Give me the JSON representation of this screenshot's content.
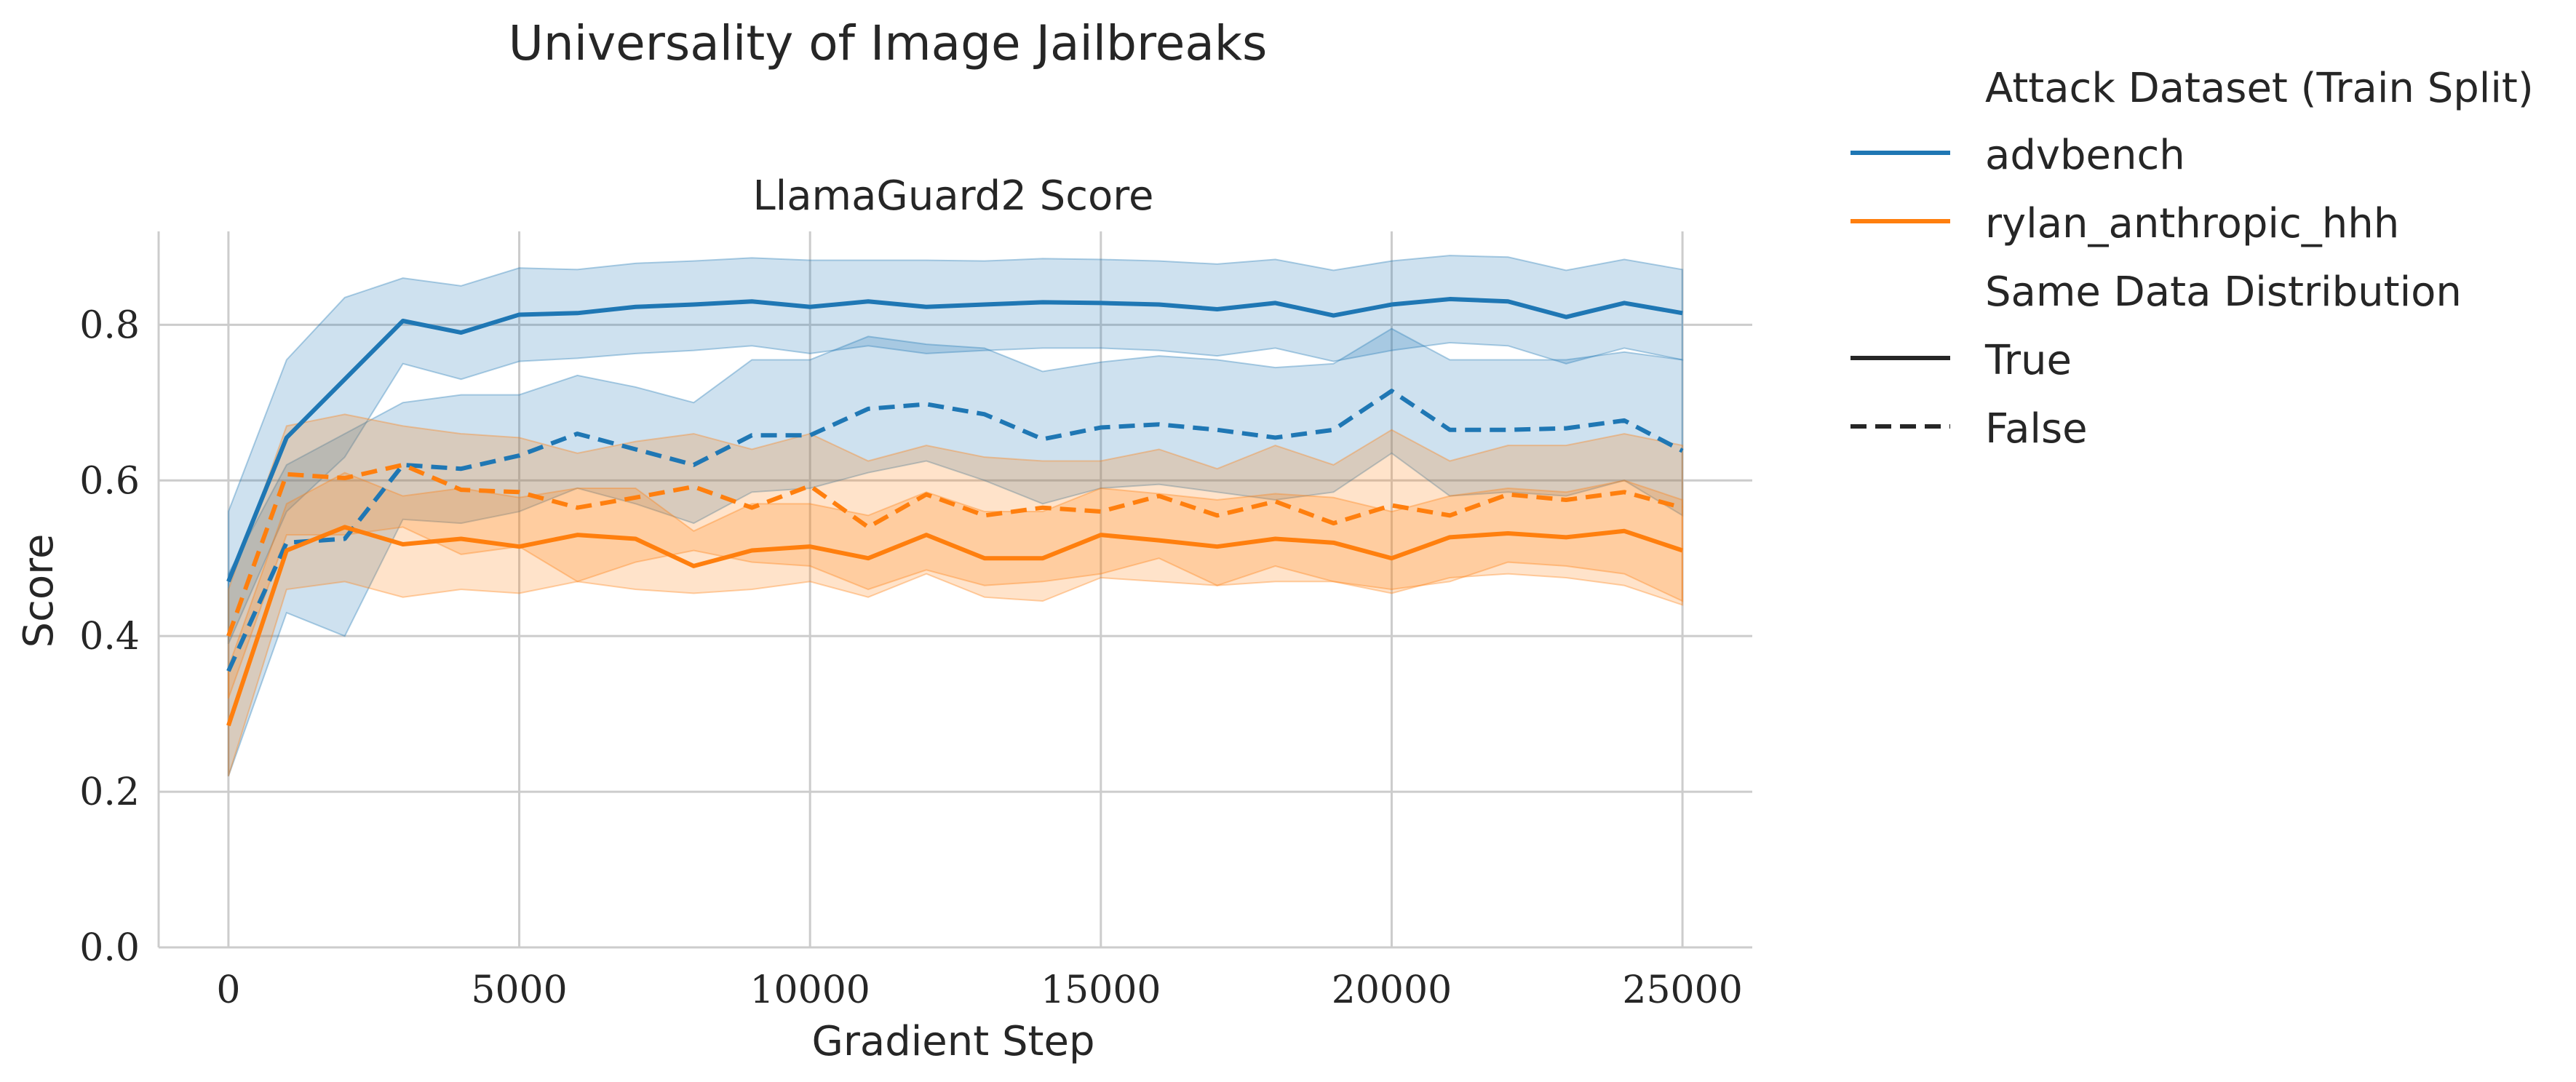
{
  "chart_data": {
    "type": "line",
    "title": "Universality of Image Jailbreaks",
    "subtitle": "LlamaGuard2 Score",
    "xlabel": "Gradient Step",
    "ylabel": "Score",
    "xlim": [
      -1200,
      26200
    ],
    "ylim": [
      0.0,
      0.92
    ],
    "xticks": [
      0,
      5000,
      10000,
      15000,
      20000,
      25000
    ],
    "xtick_labels": [
      "0",
      "5000",
      "10000",
      "15000",
      "20000",
      "25000"
    ],
    "yticks": [
      0.0,
      0.2,
      0.4,
      0.6,
      0.8
    ],
    "ytick_labels": [
      "0.0",
      "0.2",
      "0.4",
      "0.6",
      "0.8"
    ],
    "grid": true,
    "legend_placement": "outside-right",
    "legend": {
      "hue_title": "Attack Dataset (Train Split)",
      "style_title": "Same Data Distribution",
      "hue_entries": [
        {
          "label": "advbench",
          "color": "#1f77b4"
        },
        {
          "label": "rylan_anthropic_hhh",
          "color": "#ff7f0e"
        }
      ],
      "style_entries": [
        {
          "label": "True",
          "dash": "solid"
        },
        {
          "label": "False",
          "dash": "dashed"
        }
      ]
    },
    "x": [
      0,
      1000,
      2000,
      3000,
      4000,
      5000,
      6000,
      7000,
      8000,
      9000,
      10000,
      11000,
      12000,
      13000,
      14000,
      15000,
      16000,
      17000,
      18000,
      19000,
      20000,
      21000,
      22000,
      23000,
      24000,
      25000
    ],
    "series": [
      {
        "name": "advbench",
        "same_distribution": "True",
        "color": "#1f77b4",
        "dash": "solid",
        "values": [
          0.47,
          0.655,
          0.73,
          0.805,
          0.79,
          0.813,
          0.815,
          0.823,
          0.826,
          0.83,
          0.823,
          0.83,
          0.823,
          0.826,
          0.829,
          0.828,
          0.826,
          0.82,
          0.828,
          0.812,
          0.826,
          0.833,
          0.83,
          0.81,
          0.828,
          0.815
        ],
        "lower": [
          0.39,
          0.56,
          0.63,
          0.75,
          0.73,
          0.753,
          0.757,
          0.763,
          0.767,
          0.773,
          0.763,
          0.773,
          0.763,
          0.767,
          0.77,
          0.77,
          0.767,
          0.76,
          0.77,
          0.753,
          0.767,
          0.777,
          0.773,
          0.75,
          0.77,
          0.755
        ],
        "upper": [
          0.56,
          0.755,
          0.835,
          0.86,
          0.85,
          0.873,
          0.871,
          0.879,
          0.882,
          0.886,
          0.883,
          0.883,
          0.883,
          0.882,
          0.885,
          0.884,
          0.882,
          0.878,
          0.884,
          0.87,
          0.882,
          0.889,
          0.887,
          0.87,
          0.884,
          0.871
        ]
      },
      {
        "name": "advbench",
        "same_distribution": "False",
        "color": "#1f77b4",
        "dash": "dashed",
        "values": [
          0.355,
          0.52,
          0.525,
          0.62,
          0.615,
          0.632,
          0.66,
          0.64,
          0.62,
          0.658,
          0.658,
          0.692,
          0.698,
          0.685,
          0.653,
          0.668,
          0.672,
          0.665,
          0.655,
          0.665,
          0.715,
          0.665,
          0.665,
          0.667,
          0.677,
          0.638
        ],
        "lower": [
          0.22,
          0.43,
          0.4,
          0.55,
          0.545,
          0.56,
          0.59,
          0.57,
          0.545,
          0.585,
          0.59,
          0.61,
          0.625,
          0.6,
          0.57,
          0.59,
          0.595,
          0.585,
          0.575,
          0.585,
          0.635,
          0.58,
          0.585,
          0.58,
          0.6,
          0.555
        ],
        "upper": [
          0.48,
          0.62,
          0.66,
          0.7,
          0.71,
          0.71,
          0.735,
          0.72,
          0.7,
          0.755,
          0.755,
          0.785,
          0.775,
          0.77,
          0.74,
          0.752,
          0.76,
          0.755,
          0.745,
          0.75,
          0.795,
          0.755,
          0.755,
          0.755,
          0.765,
          0.755
        ]
      },
      {
        "name": "rylan_anthropic_hhh",
        "same_distribution": "True",
        "color": "#ff7f0e",
        "dash": "solid",
        "values": [
          0.285,
          0.51,
          0.54,
          0.518,
          0.525,
          0.515,
          0.53,
          0.525,
          0.49,
          0.51,
          0.515,
          0.5,
          0.53,
          0.5,
          0.5,
          0.53,
          0.523,
          0.515,
          0.525,
          0.52,
          0.5,
          0.527,
          0.532,
          0.527,
          0.535,
          0.51
        ],
        "lower": [
          0.22,
          0.46,
          0.47,
          0.45,
          0.46,
          0.455,
          0.47,
          0.46,
          0.455,
          0.46,
          0.47,
          0.45,
          0.48,
          0.45,
          0.445,
          0.475,
          0.47,
          0.465,
          0.47,
          0.47,
          0.455,
          0.475,
          0.48,
          0.475,
          0.465,
          0.44
        ],
        "upper": [
          0.36,
          0.57,
          0.61,
          0.58,
          0.59,
          0.578,
          0.59,
          0.59,
          0.535,
          0.57,
          0.57,
          0.555,
          0.585,
          0.56,
          0.56,
          0.59,
          0.583,
          0.575,
          0.583,
          0.578,
          0.56,
          0.58,
          0.59,
          0.585,
          0.6,
          0.575
        ]
      },
      {
        "name": "rylan_anthropic_hhh",
        "same_distribution": "False",
        "color": "#ff7f0e",
        "dash": "dashed",
        "values": [
          0.4,
          0.608,
          0.603,
          0.62,
          0.588,
          0.585,
          0.565,
          0.578,
          0.592,
          0.565,
          0.593,
          0.54,
          0.582,
          0.555,
          0.565,
          0.56,
          0.58,
          0.555,
          0.573,
          0.545,
          0.568,
          0.555,
          0.582,
          0.575,
          0.585,
          0.565
        ],
        "lower": [
          0.32,
          0.53,
          0.53,
          0.54,
          0.505,
          0.515,
          0.47,
          0.495,
          0.51,
          0.495,
          0.49,
          0.46,
          0.485,
          0.465,
          0.47,
          0.48,
          0.5,
          0.465,
          0.49,
          0.47,
          0.46,
          0.47,
          0.495,
          0.49,
          0.48,
          0.445
        ],
        "upper": [
          0.46,
          0.67,
          0.685,
          0.67,
          0.66,
          0.655,
          0.635,
          0.65,
          0.66,
          0.64,
          0.66,
          0.625,
          0.645,
          0.63,
          0.625,
          0.625,
          0.64,
          0.615,
          0.645,
          0.62,
          0.665,
          0.625,
          0.645,
          0.645,
          0.66,
          0.645
        ]
      }
    ]
  }
}
